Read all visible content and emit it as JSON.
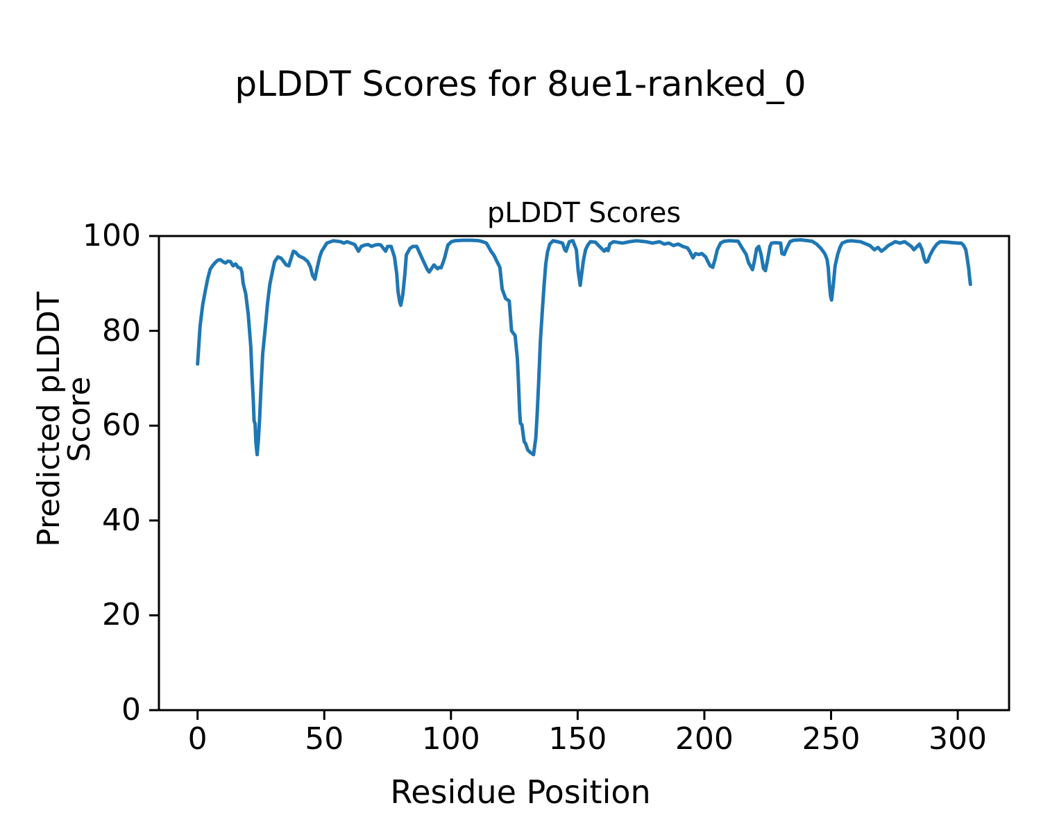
{
  "figure": {
    "suptitle": "pLDDT Scores for 8ue1-ranked_0",
    "background": "#ffffff",
    "text_color": "#000000"
  },
  "chart_data": {
    "type": "line",
    "title": "pLDDT Scores",
    "xlabel": "Residue Position",
    "ylabel": "Predicted pLDDT Score",
    "xlim": [
      -15.25,
      320.25
    ],
    "ylim": [
      0,
      100
    ],
    "xticks": [
      0,
      50,
      100,
      150,
      200,
      250,
      300
    ],
    "yticks": [
      0,
      20,
      40,
      60,
      80,
      100
    ],
    "grid": false,
    "legend": false,
    "axis_color": "#000000",
    "series": [
      {
        "name": "pLDDT",
        "color": "#1f77b4",
        "points": [
          [
            0,
            73
          ],
          [
            1,
            81
          ],
          [
            2,
            85.4
          ],
          [
            3,
            88.3
          ],
          [
            4,
            91
          ],
          [
            5,
            93
          ],
          [
            6,
            93.8
          ],
          [
            7,
            94.4
          ],
          [
            8,
            94.9
          ],
          [
            9,
            95
          ],
          [
            10,
            94.6
          ],
          [
            11,
            94.3
          ],
          [
            12,
            94.7
          ],
          [
            13,
            94.6
          ],
          [
            14,
            93.7
          ],
          [
            15,
            94.1
          ],
          [
            16,
            93.4
          ],
          [
            17,
            93.2
          ],
          [
            17.5,
            92.4
          ],
          [
            18,
            90
          ],
          [
            19,
            87.8
          ],
          [
            20,
            83.5
          ],
          [
            21,
            76.6
          ],
          [
            21.5,
            70.3
          ],
          [
            22,
            65.3
          ],
          [
            22.3,
            61
          ],
          [
            22.7,
            60.4
          ],
          [
            23,
            56.5
          ],
          [
            23.5,
            53.9
          ],
          [
            24,
            57
          ],
          [
            24.5,
            61.5
          ],
          [
            25,
            67.8
          ],
          [
            25.7,
            75.1
          ],
          [
            26.8,
            81
          ],
          [
            27.6,
            85.8
          ],
          [
            28.5,
            89.7
          ],
          [
            29.6,
            92.7
          ],
          [
            30.4,
            94.6
          ],
          [
            31.7,
            95.6
          ],
          [
            33,
            95.3
          ],
          [
            35,
            93.9
          ],
          [
            36,
            93.7
          ],
          [
            37.8,
            96.8
          ],
          [
            38.6,
            96.6
          ],
          [
            40,
            95.8
          ],
          [
            42,
            95.3
          ],
          [
            43.5,
            94.6
          ],
          [
            44.5,
            93.5
          ],
          [
            45.4,
            91.7
          ],
          [
            46.3,
            90.9
          ],
          [
            47.3,
            93.5
          ],
          [
            48.2,
            95.6
          ],
          [
            49,
            96.8
          ],
          [
            51,
            98.5
          ],
          [
            53.6,
            99
          ],
          [
            56.4,
            98.8
          ],
          [
            57.7,
            98.5
          ],
          [
            59,
            98.8
          ],
          [
            60.5,
            98.5
          ],
          [
            62,
            98.2
          ],
          [
            63.5,
            96.8
          ],
          [
            64.6,
            97.8
          ],
          [
            66,
            98.1
          ],
          [
            67.3,
            98.2
          ],
          [
            68.7,
            97.8
          ],
          [
            70,
            98.1
          ],
          [
            71.4,
            98.2
          ],
          [
            72.3,
            98.1
          ],
          [
            74.2,
            96.8
          ],
          [
            75,
            97.8
          ],
          [
            76.4,
            97.8
          ],
          [
            77.7,
            95.6
          ],
          [
            78.6,
            92
          ],
          [
            79.1,
            88.3
          ],
          [
            79.8,
            86
          ],
          [
            80.2,
            85.4
          ],
          [
            81,
            87.6
          ],
          [
            81.8,
            92
          ],
          [
            82.4,
            96
          ],
          [
            83.8,
            97.4
          ],
          [
            85,
            97.8
          ],
          [
            86.5,
            97.8
          ],
          [
            88,
            96
          ],
          [
            89.2,
            94.6
          ],
          [
            90.6,
            93
          ],
          [
            91.4,
            92.4
          ],
          [
            93.3,
            93.9
          ],
          [
            94.7,
            93.1
          ],
          [
            95.5,
            93.4
          ],
          [
            96.1,
            93.3
          ],
          [
            97.4,
            95.2
          ],
          [
            98.8,
            98.1
          ],
          [
            100.2,
            98.8
          ],
          [
            101.6,
            99
          ],
          [
            105,
            99.1
          ],
          [
            108,
            99.1
          ],
          [
            111,
            99
          ],
          [
            112.5,
            98.8
          ],
          [
            114,
            98.5
          ],
          [
            115.8,
            96.8
          ],
          [
            117,
            95.9
          ],
          [
            118,
            94.8
          ],
          [
            119.3,
            93.4
          ],
          [
            120.2,
            88.8
          ],
          [
            121.6,
            86.8
          ],
          [
            123,
            86.3
          ],
          [
            123.9,
            80
          ],
          [
            125.3,
            79
          ],
          [
            126.2,
            74.1
          ],
          [
            126.6,
            69.7
          ],
          [
            127.1,
            62.9
          ],
          [
            127.4,
            60.5
          ],
          [
            128,
            60.2
          ],
          [
            128.9,
            56.6
          ],
          [
            129.4,
            56.3
          ],
          [
            130.3,
            54.9
          ],
          [
            131.2,
            54.4
          ],
          [
            132.6,
            53.9
          ],
          [
            133.5,
            57.5
          ],
          [
            134,
            62.4
          ],
          [
            134.7,
            70.2
          ],
          [
            135.3,
            78
          ],
          [
            136,
            83.9
          ],
          [
            136.7,
            89.3
          ],
          [
            137.4,
            94.1
          ],
          [
            138.1,
            96.6
          ],
          [
            139,
            98.3
          ],
          [
            140.3,
            99
          ],
          [
            142,
            98.8
          ],
          [
            144,
            98.5
          ],
          [
            144.9,
            97.1
          ],
          [
            145.4,
            96.8
          ],
          [
            146.7,
            98.8
          ],
          [
            148.1,
            99
          ],
          [
            149.5,
            97.1
          ],
          [
            150.2,
            92.7
          ],
          [
            151,
            89.6
          ],
          [
            152.2,
            94.6
          ],
          [
            153.1,
            97.1
          ],
          [
            154,
            98.1
          ],
          [
            155,
            98.8
          ],
          [
            157,
            98.7
          ],
          [
            158.6,
            97.8
          ],
          [
            160.5,
            96.8
          ],
          [
            161.3,
            97.3
          ],
          [
            162,
            96.9
          ],
          [
            162.7,
            98.3
          ],
          [
            164.1,
            98.8
          ],
          [
            167.7,
            98.5
          ],
          [
            170.5,
            98.8
          ],
          [
            173.2,
            99
          ],
          [
            176.9,
            98.8
          ],
          [
            179.6,
            98.5
          ],
          [
            182.3,
            98.8
          ],
          [
            184.2,
            98.3
          ],
          [
            186,
            98.5
          ],
          [
            187.8,
            98
          ],
          [
            189.7,
            98.3
          ],
          [
            191.5,
            97.8
          ],
          [
            193.3,
            97.5
          ],
          [
            194.2,
            96.8
          ],
          [
            195.5,
            95.4
          ],
          [
            196.5,
            96.3
          ],
          [
            197.8,
            96.1
          ],
          [
            199,
            96.3
          ],
          [
            200.5,
            95.6
          ],
          [
            201.4,
            94.6
          ],
          [
            202.3,
            93.7
          ],
          [
            203.3,
            93.4
          ],
          [
            204.2,
            95.1
          ],
          [
            205.1,
            97.1
          ],
          [
            206.4,
            98.5
          ],
          [
            207.8,
            98.9
          ],
          [
            210,
            99
          ],
          [
            213.3,
            98.9
          ],
          [
            215.1,
            97.3
          ],
          [
            216.5,
            96.1
          ],
          [
            217.4,
            94.4
          ],
          [
            219,
            92.9
          ],
          [
            219.7,
            94.6
          ],
          [
            220.6,
            97.3
          ],
          [
            221.5,
            97.8
          ],
          [
            222.4,
            96.1
          ],
          [
            223.3,
            93.2
          ],
          [
            224.1,
            92.7
          ],
          [
            225,
            95.1
          ],
          [
            225.9,
            97.8
          ],
          [
            226.5,
            98.5
          ],
          [
            228,
            98.6
          ],
          [
            230.1,
            98.5
          ],
          [
            230.6,
            96.3
          ],
          [
            231.5,
            96.1
          ],
          [
            232.4,
            97.3
          ],
          [
            233.8,
            98.8
          ],
          [
            235.2,
            99.1
          ],
          [
            238,
            99.2
          ],
          [
            242.5,
            98.9
          ],
          [
            244.3,
            98.3
          ],
          [
            246.1,
            97.3
          ],
          [
            247.5,
            96.3
          ],
          [
            248.4,
            95.1
          ],
          [
            248.9,
            93.2
          ],
          [
            249.3,
            90.2
          ],
          [
            249.8,
            87.3
          ],
          [
            250.2,
            86.5
          ],
          [
            250.9,
            89.8
          ],
          [
            251.6,
            93.7
          ],
          [
            252.6,
            96.1
          ],
          [
            253.5,
            97.6
          ],
          [
            254.4,
            98.5
          ],
          [
            256.2,
            98.9
          ],
          [
            258,
            99
          ],
          [
            261.6,
            98.8
          ],
          [
            265.3,
            98
          ],
          [
            267.1,
            97.1
          ],
          [
            268.5,
            97.6
          ],
          [
            269.9,
            96.8
          ],
          [
            271.2,
            97.3
          ],
          [
            272.6,
            98
          ],
          [
            274.4,
            98.5
          ],
          [
            275.3,
            98.8
          ],
          [
            277.2,
            98.5
          ],
          [
            279,
            98.8
          ],
          [
            280.4,
            98.3
          ],
          [
            281.7,
            97.8
          ],
          [
            282.7,
            97.1
          ],
          [
            283.6,
            97.6
          ],
          [
            284.9,
            98.3
          ],
          [
            285.9,
            97.1
          ],
          [
            286.8,
            95.1
          ],
          [
            287.4,
            94.5
          ],
          [
            288.1,
            94.6
          ],
          [
            289,
            95.9
          ],
          [
            290.4,
            97.3
          ],
          [
            291.8,
            98.3
          ],
          [
            293.1,
            98.8
          ],
          [
            296,
            98.7
          ],
          [
            298,
            98.6
          ],
          [
            300.4,
            98.5
          ],
          [
            301.4,
            98.5
          ],
          [
            302.3,
            98
          ],
          [
            303.2,
            97.1
          ],
          [
            303.8,
            95.1
          ],
          [
            304.3,
            93.2
          ],
          [
            304.6,
            91.5
          ],
          [
            305,
            89.8
          ]
        ]
      }
    ]
  }
}
